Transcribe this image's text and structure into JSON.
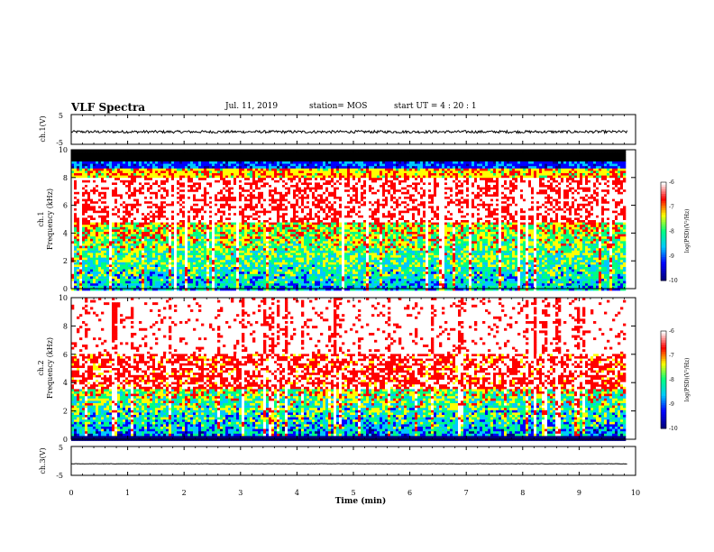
{
  "header": {
    "title": "VLF Spectra",
    "date": "Jul. 11, 2019",
    "station": "station= MOS",
    "start_ut": "start UT =  4 : 20 : 1"
  },
  "colors": {
    "palette": [
      "#000080",
      "#0000ff",
      "#00c8ff",
      "#00ff80",
      "#ffff00",
      "#ff0000",
      "#ffffff"
    ]
  },
  "chart_data": [
    {
      "type": "line",
      "name": "ch1-voltage",
      "ylabel": "ch.1(V)",
      "ylim": [
        -5,
        5
      ],
      "yticks": [
        "5",
        "-5"
      ],
      "baseline": -0.8
    },
    {
      "type": "heatmap",
      "name": "ch1-spectrogram",
      "ylabel": "Frequency (kHz)",
      "channel": "ch.1",
      "ylim": [
        0,
        10
      ],
      "yticks": [
        "0",
        "2",
        "4",
        "6",
        "8",
        "10"
      ],
      "colorbar": {
        "label": "log(PSD)(V²/Hz)",
        "range": [
          -10,
          -6
        ],
        "ticks": [
          "-6",
          "-7",
          "-8",
          "-9",
          "-10"
        ]
      },
      "bands_khz": {
        "black_top": [
          9.1,
          10
        ],
        "red": [
          4.8,
          8.0
        ],
        "green_yellow": [
          0,
          4.8
        ]
      }
    },
    {
      "type": "heatmap",
      "name": "ch2-spectrogram",
      "ylabel": "Frequency (kHz)",
      "channel": "ch.2",
      "ylim": [
        0,
        10
      ],
      "yticks": [
        "0",
        "2",
        "4",
        "6",
        "8",
        "10"
      ],
      "colorbar": {
        "label": "log(PSD)(V²/Hz)",
        "range": [
          -10,
          -6
        ],
        "ticks": [
          "-6",
          "-7",
          "-8",
          "-9",
          "-10"
        ]
      },
      "bands_khz": {
        "white_top": [
          6.0,
          10
        ],
        "red": [
          3.6,
          6.0
        ],
        "green_yellow": [
          0,
          3.6
        ]
      }
    },
    {
      "type": "line",
      "name": "ch3-voltage",
      "ylabel": "ch.3(V)",
      "ylim": [
        -5,
        5
      ],
      "yticks": [
        "5",
        "-5"
      ],
      "baseline": -1.0
    }
  ],
  "xaxis": {
    "label": "Time (min)",
    "xlim": [
      0,
      10
    ],
    "ticks": [
      "0",
      "1",
      "2",
      "3",
      "4",
      "5",
      "6",
      "7",
      "8",
      "9",
      "10"
    ],
    "data_end": 9.85
  }
}
